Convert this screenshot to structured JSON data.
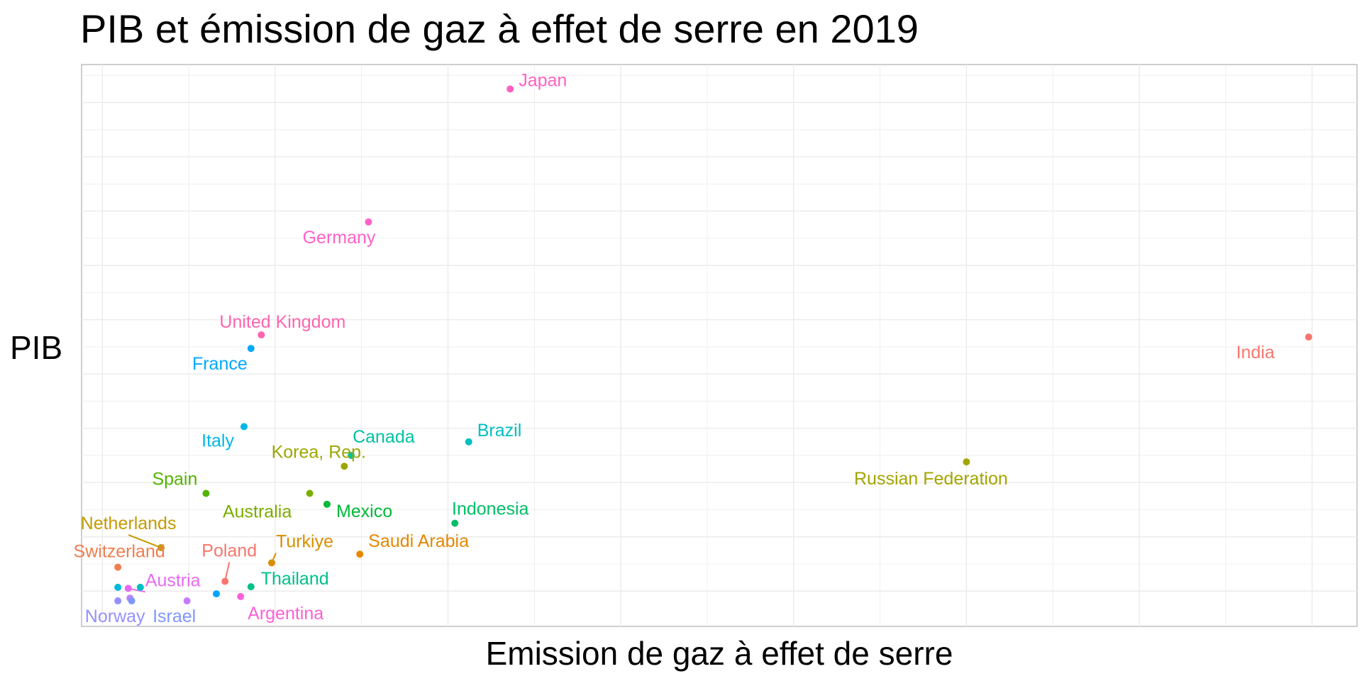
{
  "chart_data": {
    "type": "scatter",
    "title": "PIB et émission de gaz à effet de serre en 2019",
    "xlabel": "Emission de gaz à effet de serre",
    "ylabel": "PIB",
    "xlim": [
      -0.6,
      36.3
    ],
    "ylim": [
      -0.65,
      9.7
    ],
    "grid": true,
    "legend": "none",
    "points": [
      {
        "label": "Japan",
        "x": 11.8,
        "y": 9.25,
        "color": "#FF61C3"
      },
      {
        "label": "Germany",
        "x": 7.7,
        "y": 6.8,
        "color": "#FF61C9"
      },
      {
        "label": "United Kingdom",
        "x": 4.6,
        "y": 4.72,
        "color": "#FF65AE"
      },
      {
        "label": "India",
        "x": 34.9,
        "y": 4.68,
        "color": "#F8766D"
      },
      {
        "label": "France",
        "x": 4.3,
        "y": 4.47,
        "color": "#00A9FF"
      },
      {
        "label": "Italy",
        "x": 4.1,
        "y": 3.03,
        "color": "#00B8E7"
      },
      {
        "label": "Brazil",
        "x": 10.6,
        "y": 2.75,
        "color": "#00BFC4"
      },
      {
        "label": "Canada",
        "x": 7.2,
        "y": 2.5,
        "color": "#00C1A3"
      },
      {
        "label": "Russian Federation",
        "x": 25.0,
        "y": 2.38,
        "color": "#A3A500"
      },
      {
        "label": "Korea, Rep.",
        "x": 7.0,
        "y": 2.3,
        "color": "#9CA700"
      },
      {
        "label": "Spain",
        "x": 3.0,
        "y": 1.8,
        "color": "#53B400"
      },
      {
        "label": "Australia",
        "x": 6.0,
        "y": 1.8,
        "color": "#7CAE00"
      },
      {
        "label": "Mexico",
        "x": 6.5,
        "y": 1.6,
        "color": "#00BA38"
      },
      {
        "label": "Indonesia",
        "x": 10.2,
        "y": 1.25,
        "color": "#00BE67"
      },
      {
        "label": "Netherlands",
        "x": 1.7,
        "y": 0.8,
        "color": "#C49A00"
      },
      {
        "label": "Saudi Arabia",
        "x": 7.45,
        "y": 0.68,
        "color": "#E58700"
      },
      {
        "label": "Turkiye",
        "x": 4.9,
        "y": 0.52,
        "color": "#D89000"
      },
      {
        "label": "Switzerland",
        "x": 0.45,
        "y": 0.44,
        "color": "#F17E4F"
      },
      {
        "label": "Poland",
        "x": 3.55,
        "y": 0.18,
        "color": "#F8766D"
      },
      {
        "label": "Austria",
        "x": 0.75,
        "y": 0.05,
        "color": "#E76BF3"
      },
      {
        "label": "Thailand",
        "x": 4.3,
        "y": 0.08,
        "color": "#00C08B"
      },
      {
        "label": "Norway",
        "x": 0.45,
        "y": -0.18,
        "color": "#9590FF"
      },
      {
        "label": "Israel",
        "x": 0.85,
        "y": -0.18,
        "color": "#7F96FF"
      },
      {
        "label": "Argentina",
        "x": 4.0,
        "y": -0.1,
        "color": "#FB61D7"
      }
    ],
    "unlabeled_points": [
      {
        "x": 0.45,
        "y": 0.07,
        "color": "#00BCD8"
      },
      {
        "x": 1.1,
        "y": 0.07,
        "color": "#00BFC4"
      },
      {
        "x": 0.8,
        "y": -0.13,
        "color": "#B983FF"
      },
      {
        "x": 2.45,
        "y": -0.18,
        "color": "#C77CFF"
      },
      {
        "x": 3.3,
        "y": -0.05,
        "color": "#00A5FF"
      }
    ]
  }
}
